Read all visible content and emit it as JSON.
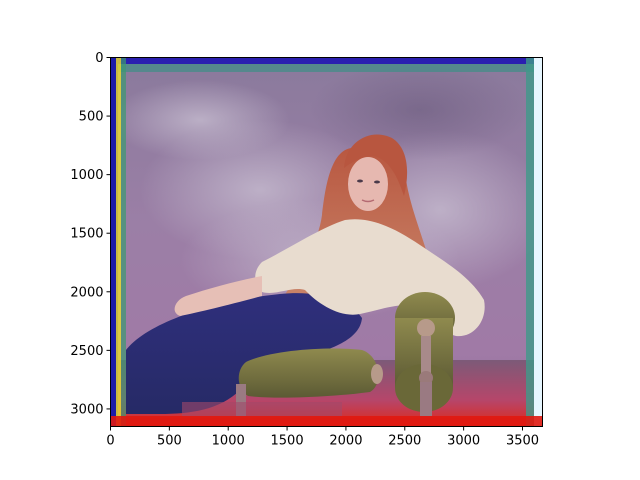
{
  "figure": {
    "type": "image-plot",
    "colors": {
      "axes_frame": "#000000",
      "background": "#ffffff"
    }
  },
  "chart_data": {
    "type": "image",
    "title": "",
    "xlabel": "",
    "ylabel": "",
    "xlim": [
      0,
      3670
    ],
    "ylim": [
      3150,
      0
    ],
    "x_ticks": [
      "0",
      "500",
      "1000",
      "1500",
      "2000",
      "2500",
      "3000",
      "3500"
    ],
    "y_ticks": [
      "0",
      "500",
      "1000",
      "1500",
      "2000",
      "2500",
      "3000"
    ],
    "grid": false,
    "image_content": "colorized-portrait-woman-reclining-on-cushions"
  }
}
